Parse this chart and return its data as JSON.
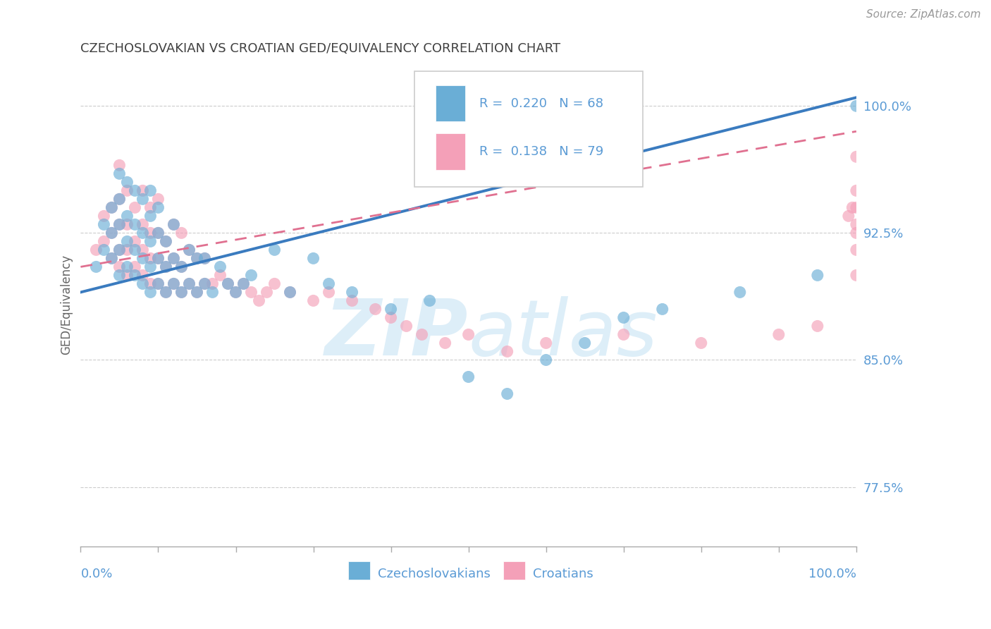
{
  "title": "CZECHOSLOVAKIAN VS CROATIAN GED/EQUIVALENCY CORRELATION CHART",
  "source": "Source: ZipAtlas.com",
  "ylabel": "GED/Equivalency",
  "yticks": [
    77.5,
    85.0,
    92.5,
    100.0
  ],
  "ytick_labels": [
    "77.5%",
    "85.0%",
    "92.5%",
    "100.0%"
  ],
  "xmin": 0.0,
  "xmax": 100.0,
  "ymin": 74.0,
  "ymax": 102.5,
  "blue_R": 0.22,
  "blue_N": 68,
  "pink_R": 0.138,
  "pink_N": 79,
  "blue_color": "#6aaed6",
  "pink_color": "#f4a0b8",
  "regression_blue_color": "#3a7bbf",
  "regression_pink_color": "#e07090",
  "grid_color": "#cccccc",
  "tick_color": "#5b9bd5",
  "title_color": "#404040",
  "source_color": "#999999",
  "watermark_color": "#ddeef8",
  "legend_color": "#5b9bd5",
  "blue_x": [
    2,
    3,
    3,
    4,
    4,
    4,
    5,
    5,
    5,
    5,
    5,
    6,
    6,
    6,
    6,
    7,
    7,
    7,
    7,
    8,
    8,
    8,
    8,
    9,
    9,
    9,
    9,
    9,
    10,
    10,
    10,
    10,
    11,
    11,
    11,
    12,
    12,
    12,
    13,
    13,
    14,
    14,
    15,
    15,
    16,
    16,
    17,
    18,
    19,
    20,
    21,
    22,
    25,
    27,
    30,
    32,
    35,
    40,
    45,
    50,
    55,
    60,
    65,
    70,
    75,
    85,
    95,
    100
  ],
  "blue_y": [
    90.5,
    91.5,
    93.0,
    91.0,
    92.5,
    94.0,
    90.0,
    91.5,
    93.0,
    94.5,
    96.0,
    90.5,
    92.0,
    93.5,
    95.5,
    90.0,
    91.5,
    93.0,
    95.0,
    89.5,
    91.0,
    92.5,
    94.5,
    89.0,
    90.5,
    92.0,
    93.5,
    95.0,
    89.5,
    91.0,
    92.5,
    94.0,
    89.0,
    90.5,
    92.0,
    89.5,
    91.0,
    93.0,
    89.0,
    90.5,
    89.5,
    91.5,
    89.0,
    91.0,
    89.5,
    91.0,
    89.0,
    90.5,
    89.5,
    89.0,
    89.5,
    90.0,
    91.5,
    89.0,
    91.0,
    89.5,
    89.0,
    88.0,
    88.5,
    84.0,
    83.0,
    85.0,
    86.0,
    87.5,
    88.0,
    89.0,
    90.0,
    100.0
  ],
  "pink_x": [
    2,
    3,
    3,
    4,
    4,
    4,
    5,
    5,
    5,
    5,
    5,
    6,
    6,
    6,
    6,
    7,
    7,
    7,
    8,
    8,
    8,
    8,
    9,
    9,
    9,
    9,
    10,
    10,
    10,
    10,
    11,
    11,
    11,
    12,
    12,
    12,
    13,
    13,
    13,
    14,
    14,
    15,
    15,
    16,
    16,
    17,
    18,
    19,
    20,
    21,
    22,
    23,
    24,
    25,
    27,
    30,
    32,
    35,
    38,
    40,
    42,
    44,
    47,
    50,
    55,
    60,
    70,
    80,
    90,
    95,
    99,
    99.5,
    100,
    100,
    100,
    100,
    100,
    100,
    100
  ],
  "pink_y": [
    91.5,
    92.0,
    93.5,
    91.0,
    92.5,
    94.0,
    90.5,
    91.5,
    93.0,
    94.5,
    96.5,
    90.0,
    91.5,
    93.0,
    95.0,
    90.5,
    92.0,
    94.0,
    90.0,
    91.5,
    93.0,
    95.0,
    89.5,
    91.0,
    92.5,
    94.0,
    89.5,
    91.0,
    92.5,
    94.5,
    89.0,
    90.5,
    92.0,
    89.5,
    91.0,
    93.0,
    89.0,
    90.5,
    92.5,
    89.5,
    91.5,
    89.0,
    91.0,
    89.5,
    91.0,
    89.5,
    90.0,
    89.5,
    89.0,
    89.5,
    89.0,
    88.5,
    89.0,
    89.5,
    89.0,
    88.5,
    89.0,
    88.5,
    88.0,
    87.5,
    87.0,
    86.5,
    86.0,
    86.5,
    85.5,
    86.0,
    86.5,
    86.0,
    86.5,
    87.0,
    93.5,
    94.0,
    90.0,
    91.5,
    92.5,
    93.0,
    94.0,
    95.0,
    97.0
  ],
  "blue_line_x0": 0.0,
  "blue_line_x1": 100.0,
  "blue_line_y0": 89.0,
  "blue_line_y1": 100.5,
  "pink_line_x0": 0.0,
  "pink_line_x1": 100.0,
  "pink_line_y0": 90.5,
  "pink_line_y1": 98.5
}
